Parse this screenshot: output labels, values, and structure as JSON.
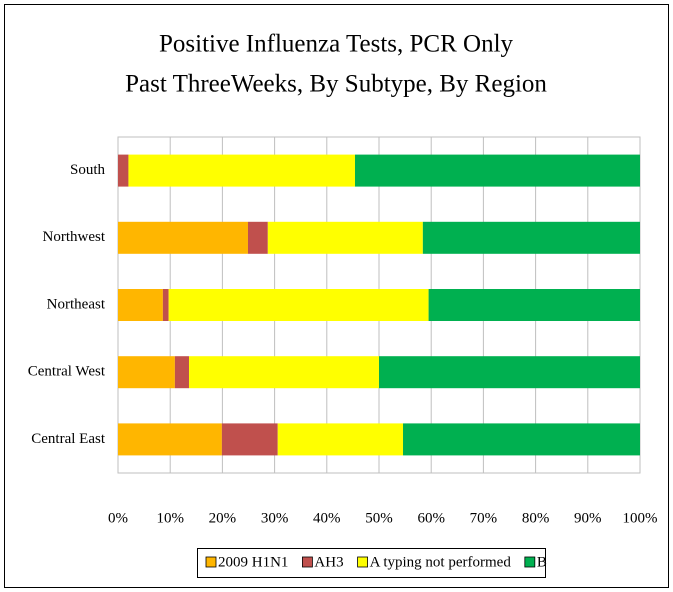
{
  "chart_data": {
    "type": "stacked_bar_horizontal",
    "title": "Positive Influenza  Tests, PCR Only",
    "subtitle": "Past ThreeWeeks, By Subtype, By Region",
    "categories": [
      "South",
      "Northwest",
      "Northeast",
      "Central West",
      "Central East"
    ],
    "series": [
      {
        "name": "2009 H1N1",
        "color": "#FFB600",
        "values": [
          0,
          24.9,
          8.6,
          10.9,
          19.9
        ]
      },
      {
        "name": "AH3",
        "color": "#C0504D",
        "values": [
          2,
          3.8,
          1.1,
          2.7,
          10.7
        ]
      },
      {
        "name": "A typing not performed",
        "color": "#FFFF00",
        "values": [
          43.4,
          29.7,
          49.8,
          36.4,
          24.0
        ]
      },
      {
        "name": "B",
        "color": "#00B050",
        "values": [
          54.6,
          41.6,
          40.5,
          50.0,
          45.4
        ]
      }
    ],
    "xlim": [
      0,
      100
    ],
    "xticks": [
      {
        "value": 0,
        "label": "0%"
      },
      {
        "value": 10,
        "label": "10%"
      },
      {
        "value": 20,
        "label": "20%"
      },
      {
        "value": 30,
        "label": "30%"
      },
      {
        "value": 40,
        "label": "40%"
      },
      {
        "value": 50,
        "label": "50%"
      },
      {
        "value": 60,
        "label": "60%"
      },
      {
        "value": 70,
        "label": "70%"
      },
      {
        "value": 80,
        "label": "80%"
      },
      {
        "value": 90,
        "label": "90%"
      },
      {
        "value": 100,
        "label": "100%"
      }
    ],
    "grid": true,
    "legend": "bottom"
  }
}
